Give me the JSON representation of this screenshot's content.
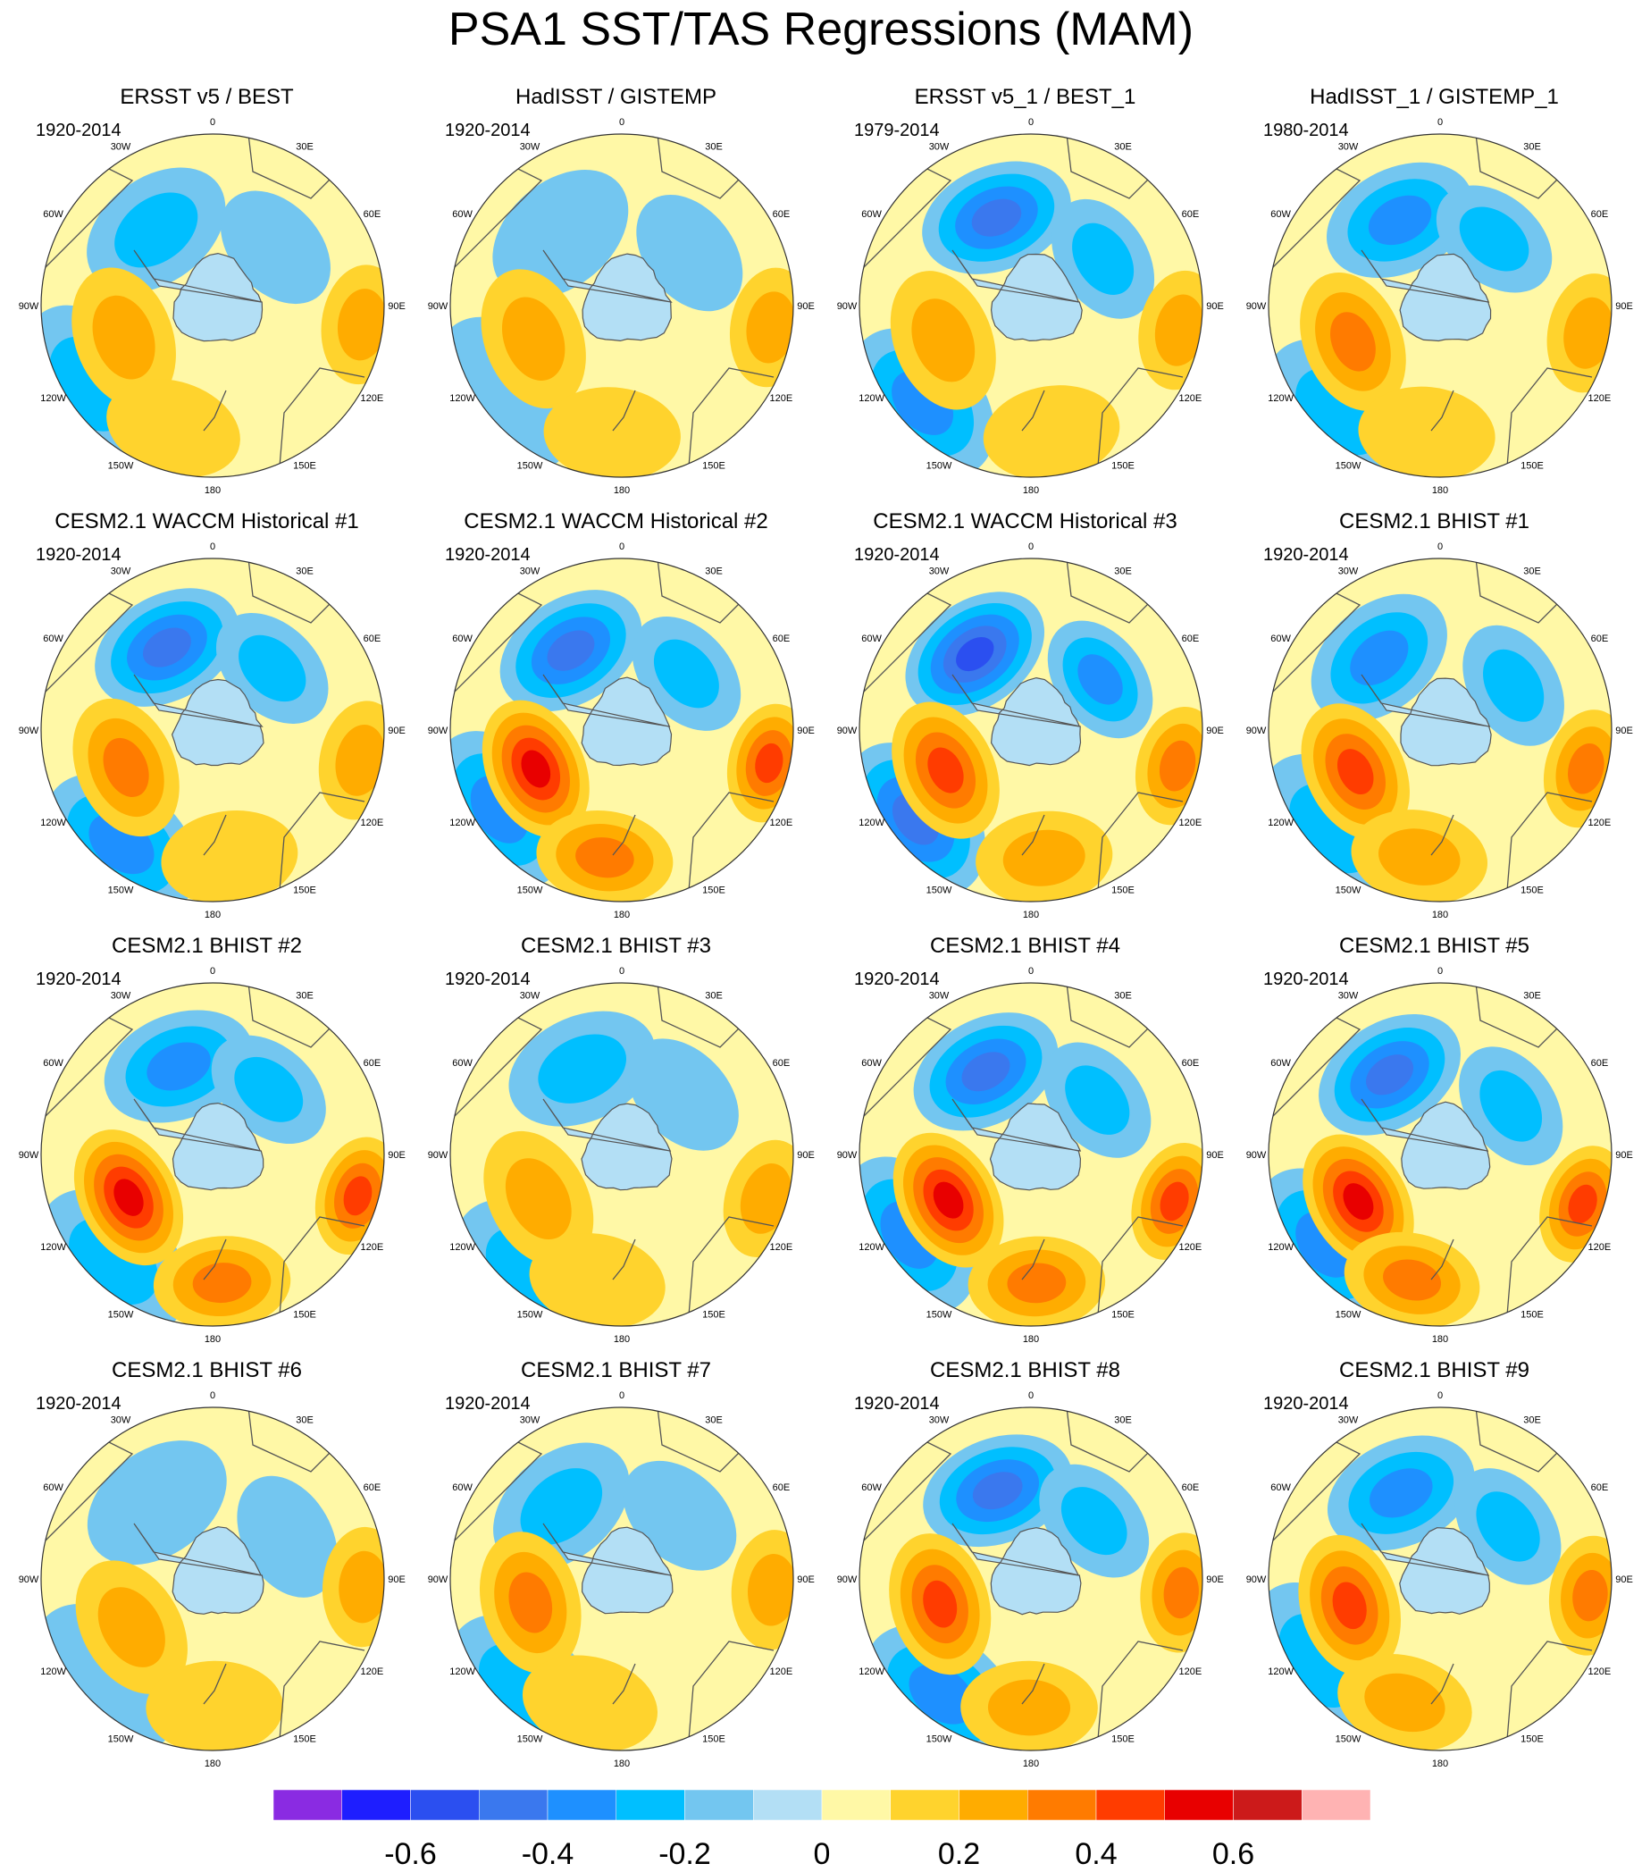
{
  "title": "PSA1 SST/TAS Regressions (MAM)",
  "lon_labels": [
    "0",
    "30E",
    "60E",
    "90E",
    "120E",
    "150E",
    "180",
    "150W",
    "120W",
    "90W",
    "60W",
    "30W"
  ],
  "panels": [
    {
      "title": "ERSST v5 / BEST",
      "period": "1920-2014"
    },
    {
      "title": "HadISST / GISTEMP",
      "period": "1920-2014"
    },
    {
      "title": "ERSST v5_1 / BEST_1",
      "period": "1979-2014"
    },
    {
      "title": "HadISST_1 / GISTEMP_1",
      "period": "1980-2014"
    },
    {
      "title": "CESM2.1 WACCM Historical #1",
      "period": "1920-2014"
    },
    {
      "title": "CESM2.1 WACCM Historical #2",
      "period": "1920-2014"
    },
    {
      "title": "CESM2.1 WACCM Historical #3",
      "period": "1920-2014"
    },
    {
      "title": "CESM2.1 BHIST #1",
      "period": "1920-2014"
    },
    {
      "title": "CESM2.1 BHIST #2",
      "period": "1920-2014"
    },
    {
      "title": "CESM2.1 BHIST #3",
      "period": "1920-2014"
    },
    {
      "title": "CESM2.1 BHIST #4",
      "period": "1920-2014"
    },
    {
      "title": "CESM2.1 BHIST #5",
      "period": "1920-2014"
    },
    {
      "title": "CESM2.1 BHIST #6",
      "period": "1920-2014"
    },
    {
      "title": "CESM2.1 BHIST #7",
      "period": "1920-2014"
    },
    {
      "title": "CESM2.1 BHIST #8",
      "period": "1920-2014"
    },
    {
      "title": "CESM2.1 BHIST #9",
      "period": "1920-2014"
    }
  ],
  "colorbar": {
    "colors": [
      "#8a2be2",
      "#1e1eff",
      "#2b4ff0",
      "#3a78ee",
      "#1e90ff",
      "#00bfff",
      "#73c6f0",
      "#b3dff5",
      "#fff8a6",
      "#ffd32d",
      "#ffac00",
      "#ff7b00",
      "#ff3c00",
      "#e80000",
      "#cc1a1a",
      "#ffb3b3"
    ],
    "labels": [
      "-0.6",
      "-0.4",
      "-0.2",
      "0",
      "0.2",
      "0.4",
      "0.6"
    ]
  },
  "chart_data": {
    "type": "heatmap",
    "title": "PSA1 SST/TAS Regressions (MAM)",
    "projection": "south polar stereographic",
    "color_levels": [
      -0.7,
      -0.6,
      -0.5,
      -0.4,
      -0.3,
      -0.2,
      -0.1,
      0,
      0.1,
      0.2,
      0.3,
      0.4,
      0.5,
      0.6,
      0.7
    ],
    "panels": [
      {
        "name": "ERSST v5 / BEST",
        "period": "1920-2014",
        "peak_positive": 0.2,
        "peak_negative": -0.2
      },
      {
        "name": "HadISST / GISTEMP",
        "period": "1920-2014",
        "peak_positive": 0.2,
        "peak_negative": -0.1
      },
      {
        "name": "ERSST v5_1 / BEST_1",
        "period": "1979-2014",
        "peak_positive": 0.2,
        "peak_negative": -0.4
      },
      {
        "name": "HadISST_1 / GISTEMP_1",
        "period": "1980-2014",
        "peak_positive": 0.3,
        "peak_negative": -0.3
      },
      {
        "name": "CESM2.1 WACCM Historical #1",
        "period": "1920-2014",
        "peak_positive": 0.3,
        "peak_negative": -0.4
      },
      {
        "name": "CESM2.1 WACCM Historical #2",
        "period": "1920-2014",
        "peak_positive": 0.5,
        "peak_negative": -0.4
      },
      {
        "name": "CESM2.1 WACCM Historical #3",
        "period": "1920-2014",
        "peak_positive": 0.4,
        "peak_negative": -0.5
      },
      {
        "name": "CESM2.1 BHIST #1",
        "period": "1920-2014",
        "peak_positive": 0.4,
        "peak_negative": -0.3
      },
      {
        "name": "CESM2.1 BHIST #2",
        "period": "1920-2014",
        "peak_positive": 0.5,
        "peak_negative": -0.3
      },
      {
        "name": "CESM2.1 BHIST #3",
        "period": "1920-2014",
        "peak_positive": 0.2,
        "peak_negative": -0.2
      },
      {
        "name": "CESM2.1 BHIST #4",
        "period": "1920-2014",
        "peak_positive": 0.5,
        "peak_negative": -0.4
      },
      {
        "name": "CESM2.1 BHIST #5",
        "period": "1920-2014",
        "peak_positive": 0.5,
        "peak_negative": -0.4
      },
      {
        "name": "CESM2.1 BHIST #6",
        "period": "1920-2014",
        "peak_positive": 0.2,
        "peak_negative": -0.1
      },
      {
        "name": "CESM2.1 BHIST #7",
        "period": "1920-2014",
        "peak_positive": 0.3,
        "peak_negative": -0.2
      },
      {
        "name": "CESM2.1 BHIST #8",
        "period": "1920-2014",
        "peak_positive": 0.4,
        "peak_negative": -0.4
      },
      {
        "name": "CESM2.1 BHIST #9",
        "period": "1920-2014",
        "peak_positive": 0.4,
        "peak_negative": -0.3
      }
    ]
  }
}
